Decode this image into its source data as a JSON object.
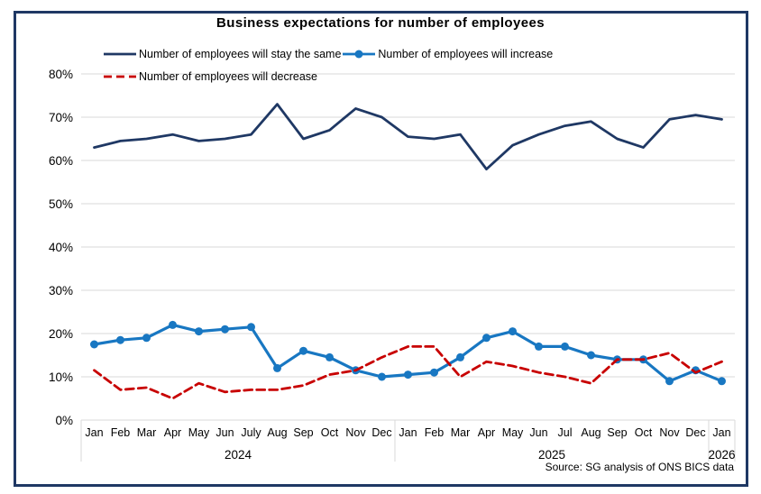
{
  "frame_color": "#1f3864",
  "title": "Business expectations for number of employees",
  "source_note": "Source: SG analysis of ONS BICS data",
  "chart_data": {
    "type": "line",
    "title": "Business expectations for number of employees",
    "xlabel": "",
    "ylabel": "",
    "ylim": [
      0,
      80
    ],
    "ytick_step": 10,
    "ytick_labels": [
      "0%",
      "10%",
      "20%",
      "30%",
      "40%",
      "50%",
      "60%",
      "70%",
      "80%"
    ],
    "grid": true,
    "grid_color": "#d9d9d9",
    "legend_position": "top-left",
    "x_labels": [
      "Jan",
      "Feb",
      "Mar",
      "Apr",
      "May",
      "Jun",
      "July",
      "Aug",
      "Sep",
      "Oct",
      "Nov",
      "Dec",
      "Jan",
      "Feb",
      "Mar",
      "Apr",
      "May",
      "Jun",
      "Jul",
      "Aug",
      "Sep",
      "Oct",
      "Nov",
      "Dec",
      "Jan"
    ],
    "year_groups": [
      {
        "label": "2024",
        "start": 0,
        "count": 12
      },
      {
        "label": "2025",
        "start": 12,
        "count": 12
      },
      {
        "label": "2026",
        "start": 24,
        "count": 1
      }
    ],
    "series": [
      {
        "name": "Number of employees will stay the same",
        "color": "#1f3864",
        "line_style": "solid",
        "marker": false,
        "values": [
          63,
          64.5,
          65,
          66,
          64.5,
          65,
          66,
          73,
          65,
          67,
          72,
          70,
          65.5,
          65,
          66,
          58,
          63.5,
          66,
          68,
          69,
          65,
          63,
          69.5,
          70.5,
          69.5
        ]
      },
      {
        "name": "Number of employees will increase",
        "color": "#1877c2",
        "line_style": "solid",
        "marker": true,
        "values": [
          17.5,
          18.5,
          19,
          22,
          20.5,
          21,
          21.5,
          12,
          16,
          14.5,
          11.5,
          10,
          10.5,
          11,
          14.5,
          19,
          20.5,
          17,
          17,
          15,
          14,
          14,
          9,
          11.5,
          9
        ]
      },
      {
        "name": "Number of employees will decrease",
        "color": "#c80000",
        "line_style": "dashed",
        "marker": false,
        "values": [
          11.5,
          7,
          7.5,
          5,
          8.5,
          6.5,
          7,
          7,
          8,
          10.5,
          11.5,
          14.5,
          17,
          17,
          10,
          13.5,
          12.5,
          11,
          10,
          8.5,
          14,
          14,
          15.5,
          11,
          13.5
        ]
      }
    ]
  }
}
